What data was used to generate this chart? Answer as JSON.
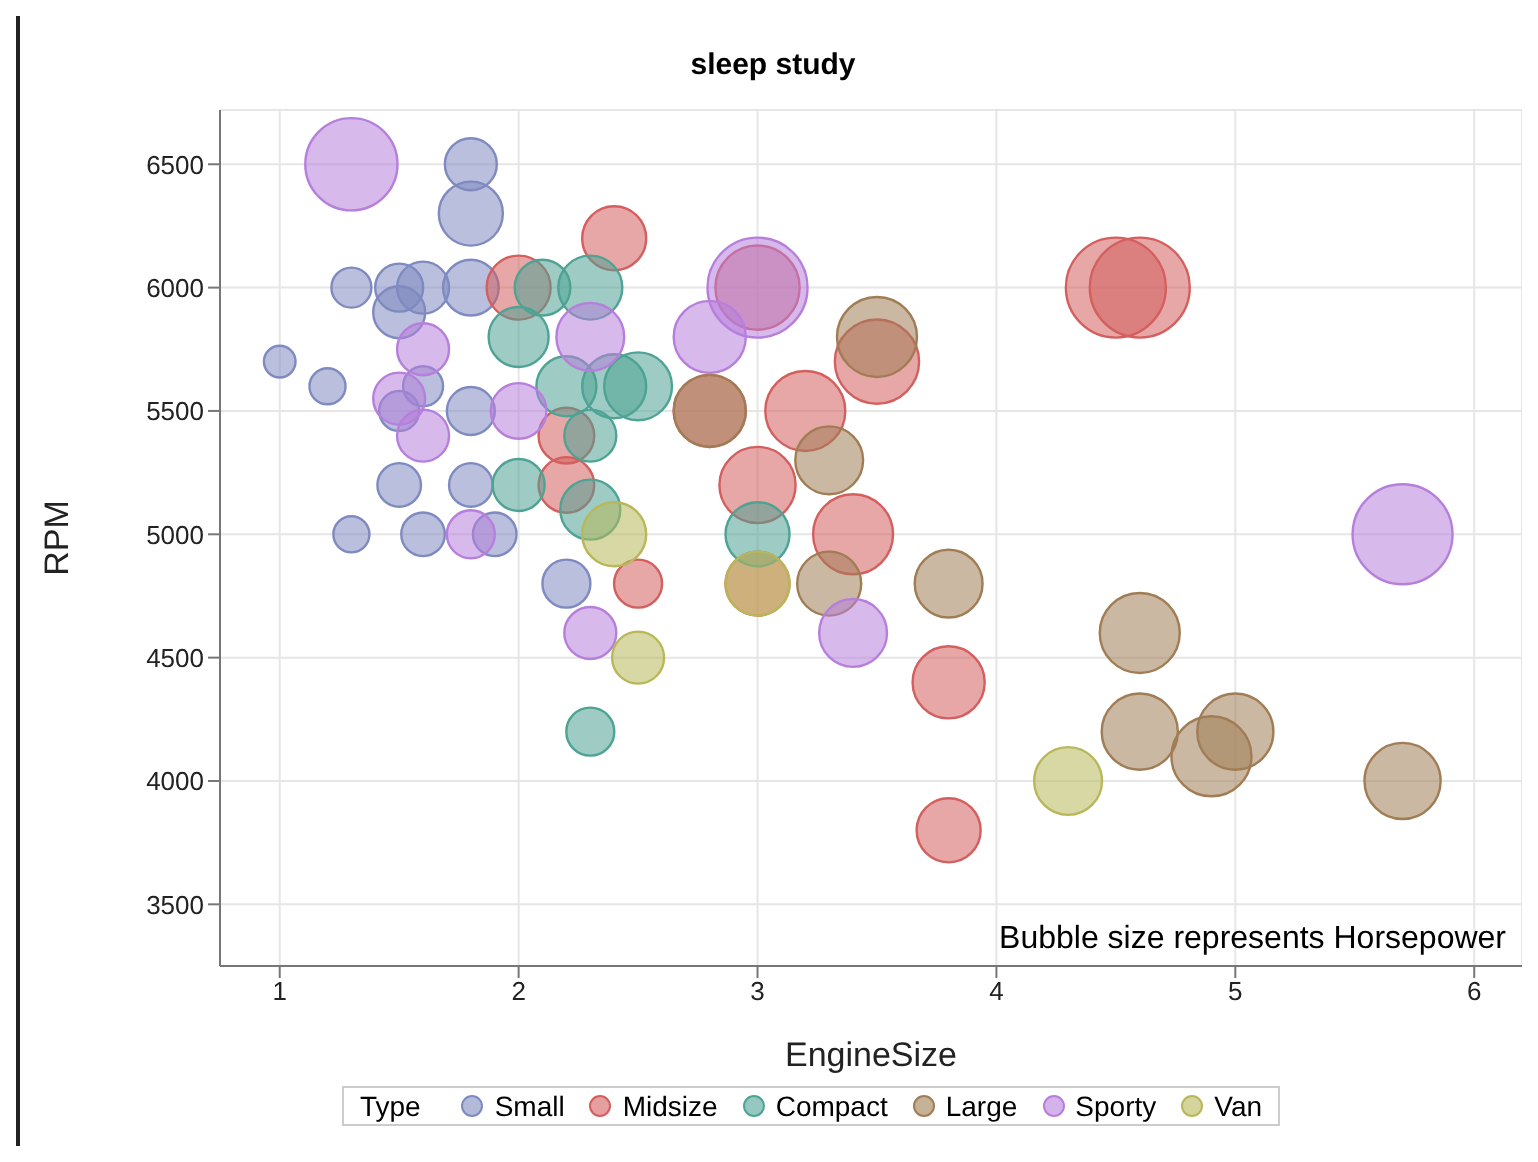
{
  "chart_data": {
    "type": "bubble",
    "title": "sleep study",
    "xlabel": "EngineSize",
    "ylabel": "RPM",
    "legend_title": "Type",
    "annotations": [
      "Bubble size represents Horsepower"
    ],
    "xlim": [
      0.75,
      6.2
    ],
    "ylim": [
      3250,
      6720
    ],
    "xticks": [
      1,
      2,
      3,
      4,
      5,
      6
    ],
    "yticks": [
      3500,
      4000,
      4500,
      5000,
      5500,
      6000,
      6500
    ],
    "grid": true,
    "legend": "bottom",
    "series": [
      {
        "name": "Small",
        "color": "#7f8bc0",
        "x": [
          1.0,
          1.2,
          1.3,
          1.3,
          1.5,
          1.5,
          1.5,
          1.5,
          1.6,
          1.6,
          1.6,
          1.8,
          1.8,
          1.8,
          1.8,
          1.8,
          1.9,
          2.2
        ],
        "values": [
          5700,
          5600,
          6000,
          5000,
          6000,
          5900,
          5500,
          5200,
          6000,
          5600,
          5000,
          6500,
          6300,
          6000,
          5500,
          5200,
          5000,
          4800
        ],
        "sizes": [
          0.1,
          0.13,
          0.16,
          0.13,
          0.23,
          0.27,
          0.16,
          0.19,
          0.27,
          0.16,
          0.19,
          0.27,
          0.41,
          0.31,
          0.23,
          0.19,
          0.19,
          0.23
        ]
      },
      {
        "name": "Midsize",
        "color": "#d35f5f",
        "x": [
          2.0,
          2.4,
          2.2,
          2.2,
          2.5,
          2.8,
          3.0,
          3.0,
          3.0,
          3.2,
          3.4,
          3.5,
          3.8,
          3.8,
          4.5,
          4.6
        ],
        "values": [
          6000,
          6200,
          5400,
          5200,
          4800,
          5500,
          6000,
          5200,
          4800,
          5500,
          5000,
          5700,
          4400,
          3800,
          6000,
          6000
        ],
        "sizes": [
          0.41,
          0.41,
          0.31,
          0.31,
          0.23,
          0.52,
          0.71,
          0.58,
          0.41,
          0.64,
          0.64,
          0.71,
          0.52,
          0.41,
          1,
          1
        ]
      },
      {
        "name": "Compact",
        "color": "#4fa394",
        "x": [
          2.0,
          2.0,
          2.1,
          2.3,
          2.2,
          2.3,
          2.3,
          2.3,
          2.4,
          2.5,
          3.0
        ],
        "values": [
          5800,
          5200,
          6000,
          6000,
          5600,
          5400,
          5100,
          4200,
          5600,
          5600,
          5000
        ],
        "sizes": [
          0.36,
          0.27,
          0.31,
          0.41,
          0.36,
          0.27,
          0.36,
          0.23,
          0.41,
          0.46,
          0.41
        ]
      },
      {
        "name": "Large",
        "color": "#a07d55",
        "x": [
          2.8,
          3.3,
          3.3,
          3.5,
          3.8,
          4.6,
          4.6,
          4.9,
          5.0,
          5.7
        ],
        "values": [
          5500,
          5300,
          4800,
          5800,
          4800,
          4600,
          4200,
          4100,
          4200,
          4000
        ],
        "sizes": [
          0.52,
          0.46,
          0.41,
          0.64,
          0.46,
          0.64,
          0.58,
          0.64,
          0.58,
          0.58
        ]
      },
      {
        "name": "Sporty",
        "color": "#b77fdc",
        "x": [
          1.3,
          1.5,
          1.6,
          1.6,
          1.8,
          2.0,
          2.3,
          2.3,
          2.8,
          3.0,
          3.4,
          5.7
        ],
        "values": [
          6500,
          5550,
          5750,
          5400,
          5000,
          5500,
          5800,
          4600,
          5800,
          6000,
          4600,
          5000
        ],
        "sizes": [
          0.85,
          0.27,
          0.27,
          0.27,
          0.23,
          0.31,
          0.46,
          0.27,
          0.52,
          1,
          0.46,
          1
        ]
      },
      {
        "name": "Van",
        "color": "#b8b85a",
        "x": [
          2.4,
          2.5,
          3.0,
          4.3
        ],
        "values": [
          5000,
          4500,
          4800,
          4000
        ],
        "sizes": [
          0.41,
          0.27,
          0.41,
          0.46
        ]
      }
    ]
  }
}
